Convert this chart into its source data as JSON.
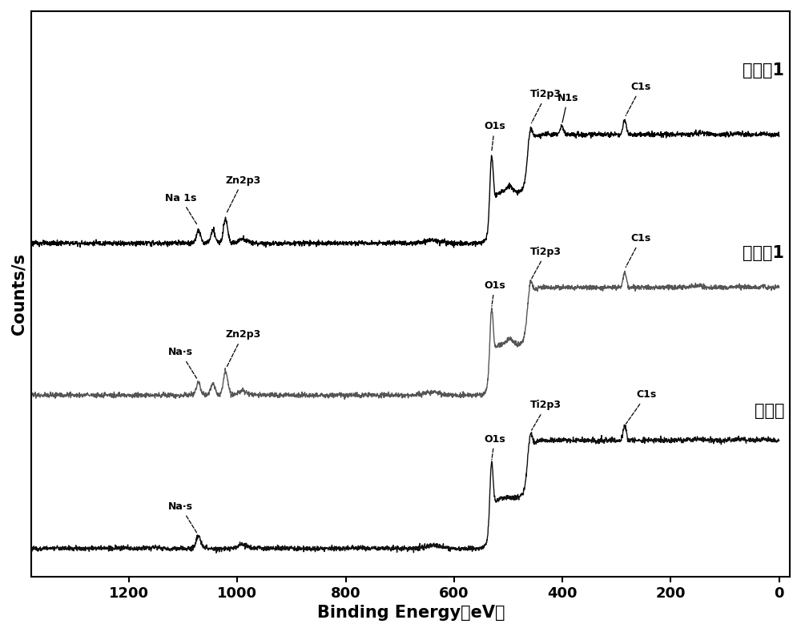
{
  "xlabel": "Binding Energy（eV）",
  "ylabel": "Counts/s",
  "x_ticks": [
    1200,
    1000,
    800,
    600,
    400,
    200,
    0
  ],
  "sample_labels": [
    "实施例1",
    "对比例1",
    "钓酸盐"
  ],
  "line_colors": [
    "#000000",
    "#555555",
    "#111111"
  ],
  "offsets": [
    1.55,
    0.78,
    0.0
  ],
  "scale": 0.65
}
